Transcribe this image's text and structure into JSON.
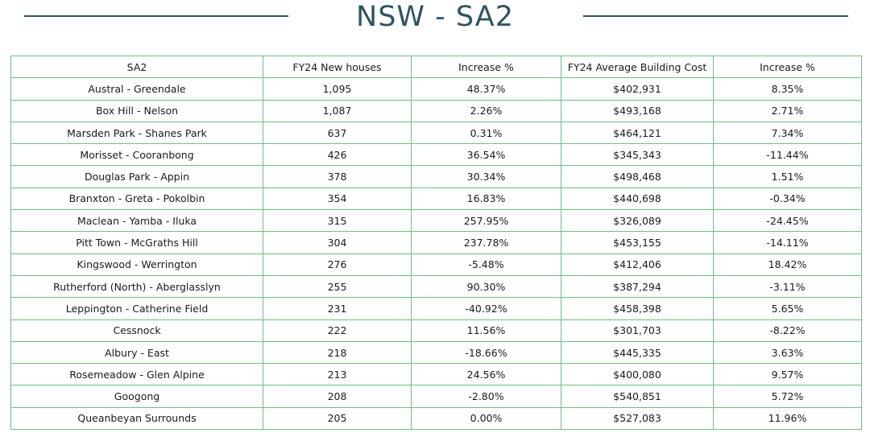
{
  "title": "NSW - SA2",
  "table": {
    "headers": [
      "SA2",
      "FY24 New houses",
      "Increase %",
      "FY24 Average Building Cost",
      "Increase %"
    ],
    "rows": [
      [
        "Austral - Greendale",
        "1,095",
        "48.37%",
        "$402,931",
        "8.35%"
      ],
      [
        "Box Hill - Nelson",
        "1,087",
        "2.26%",
        "$493,168",
        "2.71%"
      ],
      [
        "Marsden Park - Shanes Park",
        "637",
        "0.31%",
        "$464,121",
        "7.34%"
      ],
      [
        "Morisset - Cooranbong",
        "426",
        "36.54%",
        "$345,343",
        "-11.44%"
      ],
      [
        "Douglas Park - Appin",
        "378",
        "30.34%",
        "$498,468",
        "1.51%"
      ],
      [
        "Branxton - Greta - Pokolbin",
        "354",
        "16.83%",
        "$440,698",
        "-0.34%"
      ],
      [
        "Maclean - Yamba - Iluka",
        "315",
        "257.95%",
        "$326,089",
        "-24.45%"
      ],
      [
        "Pitt Town - McGraths Hill",
        "304",
        "237.78%",
        "$453,155",
        "-14.11%"
      ],
      [
        "Kingswood - Werrington",
        "276",
        "-5.48%",
        "$412,406",
        "18.42%"
      ],
      [
        "Rutherford (North) - Aberglasslyn",
        "255",
        "90.30%",
        "$387,294",
        "-3.11%"
      ],
      [
        "Leppington - Catherine Field",
        "231",
        "-40.92%",
        "$458,398",
        "5.65%"
      ],
      [
        "Cessnock",
        "222",
        "11.56%",
        "$301,703",
        "-8.22%"
      ],
      [
        "Albury - East",
        "218",
        "-18.66%",
        "$445,335",
        "3.63%"
      ],
      [
        "Rosemeadow - Glen Alpine",
        "213",
        "24.56%",
        "$400,080",
        "9.57%"
      ],
      [
        "Googong",
        "208",
        "-2.80%",
        "$540,851",
        "5.72%"
      ],
      [
        "Queanbeyan Surrounds",
        "205",
        "0.00%",
        "$527,083",
        "11.96%"
      ]
    ]
  }
}
